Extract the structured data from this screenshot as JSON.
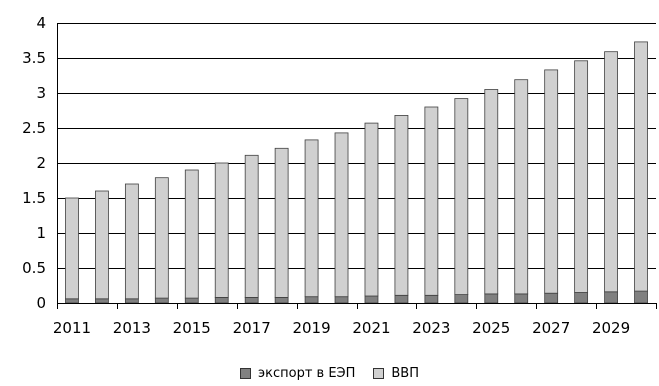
{
  "chart_data": {
    "type": "bar",
    "stacked": true,
    "categories": [
      "2011",
      "2012",
      "2013",
      "2014",
      "2015",
      "2016",
      "2017",
      "2018",
      "2019",
      "2020",
      "2021",
      "2022",
      "2023",
      "2024",
      "2025",
      "2026",
      "2027",
      "2028",
      "2029",
      "2030"
    ],
    "x_tick_labels": [
      "2011",
      "2013",
      "2015",
      "2017",
      "2019",
      "2021",
      "2023",
      "2025",
      "2027",
      "2029"
    ],
    "series": [
      {
        "name": "экспорт в ЕЭП",
        "color": "#808080",
        "values": [
          0.06,
          0.06,
          0.06,
          0.07,
          0.07,
          0.08,
          0.08,
          0.08,
          0.09,
          0.09,
          0.1,
          0.11,
          0.11,
          0.12,
          0.13,
          0.13,
          0.14,
          0.15,
          0.16,
          0.17
        ]
      },
      {
        "name": "ВВП",
        "color": "#d0d0d0",
        "values": [
          1.44,
          1.54,
          1.64,
          1.72,
          1.83,
          1.92,
          2.03,
          2.13,
          2.24,
          2.34,
          2.47,
          2.57,
          2.69,
          2.8,
          2.92,
          3.06,
          3.19,
          3.31,
          3.43,
          3.56
        ]
      }
    ],
    "title": "",
    "xlabel": "",
    "ylabel": "",
    "ylim": [
      0,
      4
    ],
    "yticks": [
      "0",
      "0.5",
      "1",
      "1.5",
      "2",
      "2.5",
      "3",
      "3.5",
      "4"
    ],
    "grid": true,
    "legend": "bottom"
  }
}
